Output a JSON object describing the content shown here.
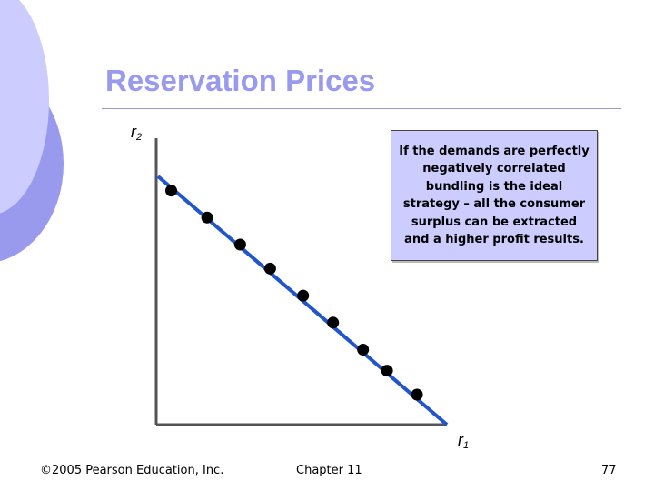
{
  "slide": {
    "title": "Reservation Prices",
    "note": "If the demands are perfectly negatively correlated bundling is the ideal strategy – all the consumer surplus can be extracted and a higher profit results.",
    "footer": {
      "copyright": "©2005 Pearson Education, Inc.",
      "chapter": "Chapter 11",
      "page": "77"
    }
  },
  "diagram": {
    "y_axis": {
      "label": "r",
      "subscript": "2"
    },
    "x_axis": {
      "label": "r",
      "subscript": "1"
    },
    "line_color": "#2255cc",
    "point_color": "#000000",
    "points": [
      {
        "x": 0.05,
        "y": 0.78
      },
      {
        "x": 0.17,
        "y": 0.69
      },
      {
        "x": 0.28,
        "y": 0.6
      },
      {
        "x": 0.38,
        "y": 0.52
      },
      {
        "x": 0.49,
        "y": 0.43
      },
      {
        "x": 0.59,
        "y": 0.34
      },
      {
        "x": 0.69,
        "y": 0.25
      },
      {
        "x": 0.77,
        "y": 0.18
      },
      {
        "x": 0.87,
        "y": 0.1
      }
    ]
  },
  "colors": {
    "title": "#9999ee",
    "note_background": "#ccccff",
    "decoration_light": "#ccccff",
    "decoration_dark": "#9999ee"
  }
}
